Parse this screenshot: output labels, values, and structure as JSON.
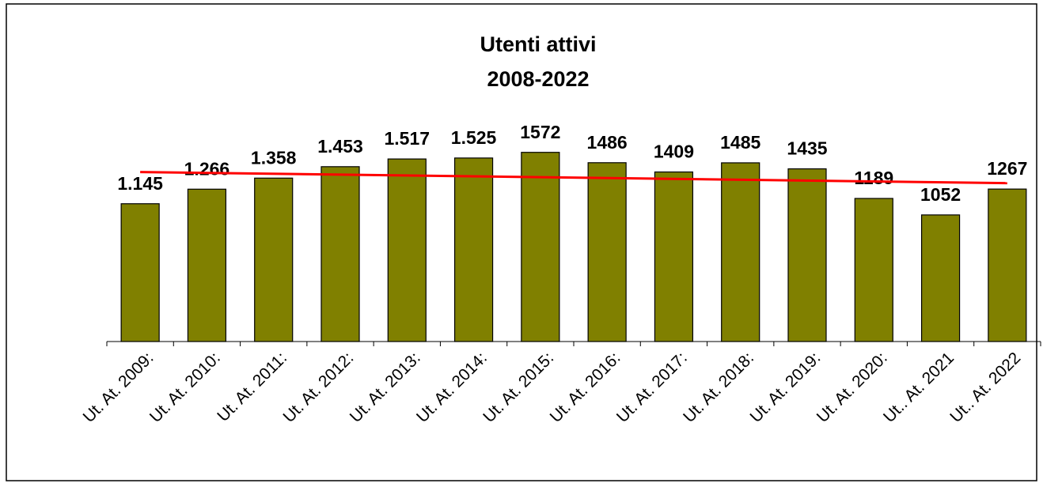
{
  "chart_data": {
    "type": "bar",
    "title": "Utenti attivi",
    "subtitle": "2008-2022",
    "categories": [
      "Ut. At. 2009:",
      "Ut. At. 2010:",
      "Ut. At. 2011:",
      "Ut. At. 2012:",
      "Ut. At. 2013:",
      "Ut. At. 2014:",
      "Ut. At. 2015:",
      "Ut. At. 2016:",
      "Ut. At. 2017:",
      "Ut. At. 2018:",
      "Ut. At. 2019:",
      "Ut. At. 2020:",
      "Ut.. At. 2021",
      "Ut.. At. 2022"
    ],
    "values": [
      1145,
      1266,
      1358,
      1453,
      1517,
      1525,
      1572,
      1486,
      1409,
      1485,
      1435,
      1189,
      1052,
      1267
    ],
    "value_labels": [
      "1.145",
      "1.266",
      "1.358",
      "1.453",
      "1.517",
      "1.525",
      "1572",
      "1486",
      "1409",
      "1485",
      "1435",
      "1189",
      "1052",
      "1267"
    ],
    "color": "#808000",
    "ylim": [
      0,
      1800
    ],
    "trendline": {
      "color": "#ff0000",
      "values": [
        1408,
        1316
      ]
    }
  }
}
